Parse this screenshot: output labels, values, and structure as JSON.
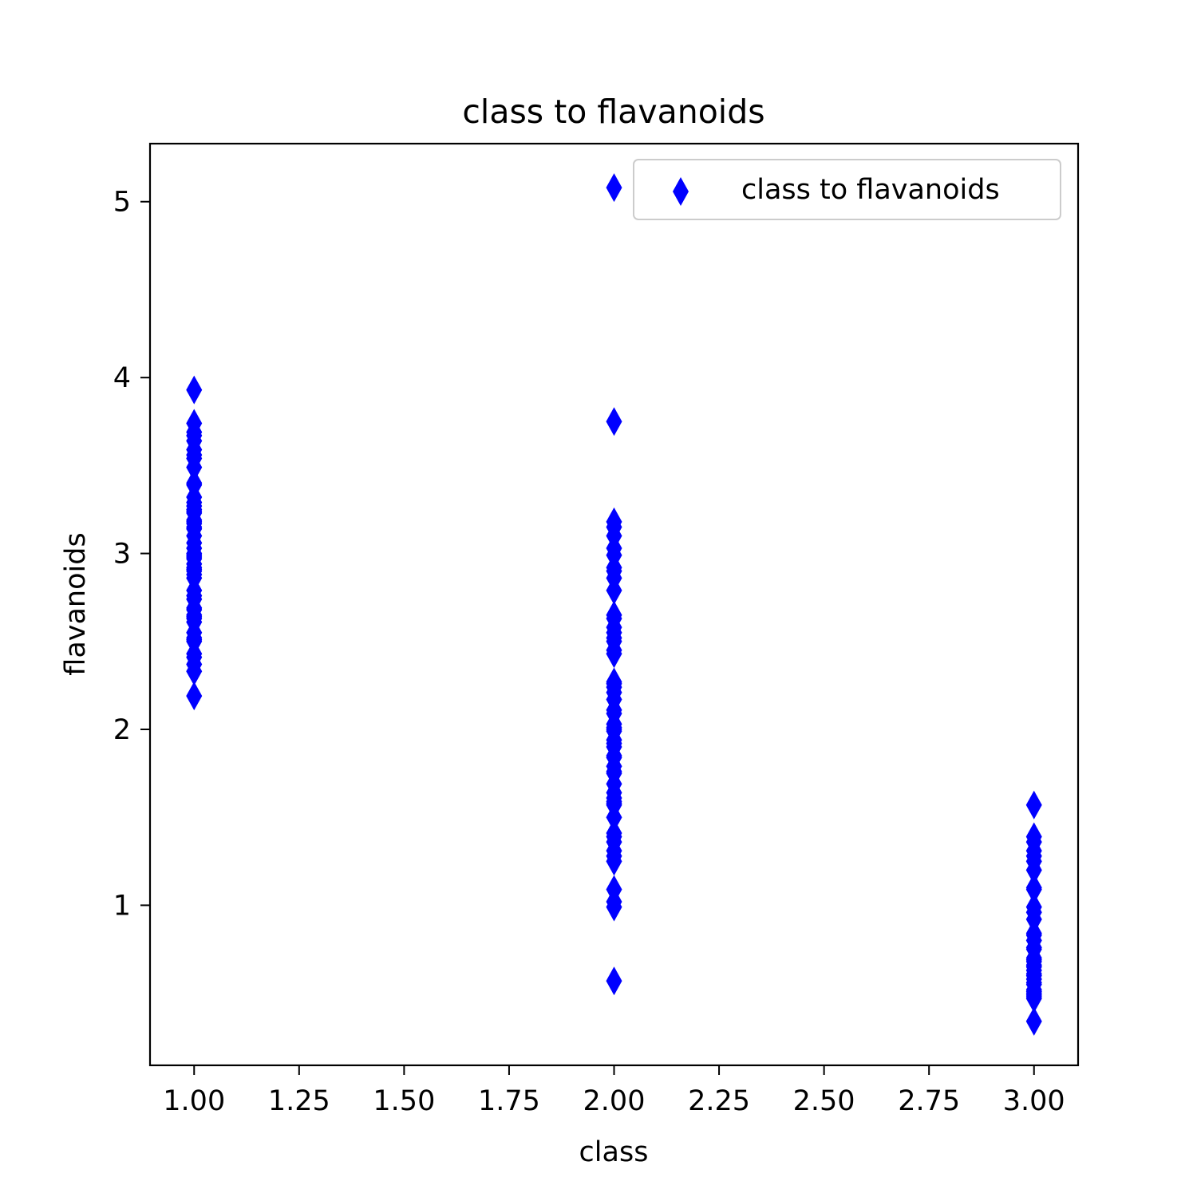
{
  "chart_data": {
    "type": "scatter",
    "title": "class to flavanoids",
    "xlabel": "class",
    "ylabel": "flavanoids",
    "xlim": [
      0.895,
      3.105
    ],
    "ylim": [
      0.09,
      5.33
    ],
    "xticks": [
      1.0,
      1.25,
      1.5,
      1.75,
      2.0,
      2.25,
      2.5,
      2.75,
      3.0
    ],
    "xtick_labels": [
      "1.00",
      "1.25",
      "1.50",
      "1.75",
      "2.00",
      "2.25",
      "2.50",
      "2.75",
      "3.00"
    ],
    "yticks": [
      1,
      2,
      3,
      4,
      5
    ],
    "ytick_labels": [
      "1",
      "2",
      "3",
      "4",
      "5"
    ],
    "grid": false,
    "legend_position": "top-right",
    "marker": "thin_diamond",
    "color": "#0000ff",
    "series": [
      {
        "name": "class to flavanoids",
        "points": [
          [
            1,
            3.93
          ],
          [
            1,
            3.74
          ],
          [
            1,
            3.69
          ],
          [
            1,
            3.67
          ],
          [
            1,
            3.64
          ],
          [
            1,
            3.59
          ],
          [
            1,
            3.56
          ],
          [
            1,
            3.54
          ],
          [
            1,
            3.49
          ],
          [
            1,
            3.4
          ],
          [
            1,
            3.39
          ],
          [
            1,
            3.32
          ],
          [
            1,
            3.29
          ],
          [
            1,
            3.27
          ],
          [
            1,
            3.25
          ],
          [
            1,
            3.24
          ],
          [
            1,
            3.23
          ],
          [
            1,
            3.19
          ],
          [
            1,
            3.18
          ],
          [
            1,
            3.17
          ],
          [
            1,
            3.15
          ],
          [
            1,
            3.14
          ],
          [
            1,
            3.1
          ],
          [
            1,
            3.06
          ],
          [
            1,
            3.03
          ],
          [
            1,
            3.0
          ],
          [
            1,
            2.99
          ],
          [
            1,
            2.98
          ],
          [
            1,
            2.97
          ],
          [
            1,
            2.94
          ],
          [
            1,
            2.92
          ],
          [
            1,
            2.91
          ],
          [
            1,
            2.9
          ],
          [
            1,
            2.88
          ],
          [
            1,
            2.86
          ],
          [
            1,
            2.79
          ],
          [
            1,
            2.76
          ],
          [
            1,
            2.74
          ],
          [
            1,
            2.69
          ],
          [
            1,
            2.68
          ],
          [
            1,
            2.65
          ],
          [
            1,
            2.64
          ],
          [
            1,
            2.63
          ],
          [
            1,
            2.61
          ],
          [
            1,
            2.55
          ],
          [
            1,
            2.52
          ],
          [
            1,
            2.51
          ],
          [
            1,
            2.5
          ],
          [
            1,
            2.43
          ],
          [
            1,
            2.41
          ],
          [
            1,
            2.37
          ],
          [
            1,
            2.33
          ],
          [
            1,
            2.19
          ],
          [
            2,
            5.08
          ],
          [
            2,
            3.75
          ],
          [
            2,
            3.18
          ],
          [
            2,
            3.15
          ],
          [
            2,
            3.1
          ],
          [
            2,
            3.03
          ],
          [
            2,
            2.99
          ],
          [
            2,
            2.92
          ],
          [
            2,
            2.9
          ],
          [
            2,
            2.86
          ],
          [
            2,
            2.79
          ],
          [
            2,
            2.65
          ],
          [
            2,
            2.63
          ],
          [
            2,
            2.58
          ],
          [
            2,
            2.55
          ],
          [
            2,
            2.52
          ],
          [
            2,
            2.5
          ],
          [
            2,
            2.45
          ],
          [
            2,
            2.43
          ],
          [
            2,
            2.27
          ],
          [
            2,
            2.26
          ],
          [
            2,
            2.24
          ],
          [
            2,
            2.21
          ],
          [
            2,
            2.17
          ],
          [
            2,
            2.11
          ],
          [
            2,
            2.09
          ],
          [
            2,
            2.03
          ],
          [
            2,
            2.01
          ],
          [
            2,
            2.0
          ],
          [
            2,
            1.99
          ],
          [
            2,
            1.94
          ],
          [
            2,
            1.92
          ],
          [
            2,
            1.9
          ],
          [
            2,
            1.85
          ],
          [
            2,
            1.84
          ],
          [
            2,
            1.79
          ],
          [
            2,
            1.76
          ],
          [
            2,
            1.75
          ],
          [
            2,
            1.69
          ],
          [
            2,
            1.64
          ],
          [
            2,
            1.61
          ],
          [
            2,
            1.59
          ],
          [
            2,
            1.58
          ],
          [
            2,
            1.57
          ],
          [
            2,
            1.5
          ],
          [
            2,
            1.41
          ],
          [
            2,
            1.39
          ],
          [
            2,
            1.36
          ],
          [
            2,
            1.31
          ],
          [
            2,
            1.28
          ],
          [
            2,
            1.25
          ],
          [
            2,
            1.09
          ],
          [
            2,
            1.02
          ],
          [
            2,
            0.99
          ],
          [
            2,
            0.57
          ],
          [
            3,
            1.57
          ],
          [
            3,
            1.39
          ],
          [
            3,
            1.36
          ],
          [
            3,
            1.31
          ],
          [
            3,
            1.28
          ],
          [
            3,
            1.25
          ],
          [
            3,
            1.2
          ],
          [
            3,
            1.1
          ],
          [
            3,
            1.09
          ],
          [
            3,
            0.99
          ],
          [
            3,
            0.96
          ],
          [
            3,
            0.92
          ],
          [
            3,
            0.84
          ],
          [
            3,
            0.83
          ],
          [
            3,
            0.8
          ],
          [
            3,
            0.76
          ],
          [
            3,
            0.75
          ],
          [
            3,
            0.7
          ],
          [
            3,
            0.69
          ],
          [
            3,
            0.68
          ],
          [
            3,
            0.66
          ],
          [
            3,
            0.65
          ],
          [
            3,
            0.63
          ],
          [
            3,
            0.61
          ],
          [
            3,
            0.6
          ],
          [
            3,
            0.58
          ],
          [
            3,
            0.56
          ],
          [
            3,
            0.55
          ],
          [
            3,
            0.52
          ],
          [
            3,
            0.51
          ],
          [
            3,
            0.5
          ],
          [
            3,
            0.49
          ],
          [
            3,
            0.48
          ],
          [
            3,
            0.47
          ],
          [
            3,
            0.34
          ]
        ]
      }
    ]
  }
}
